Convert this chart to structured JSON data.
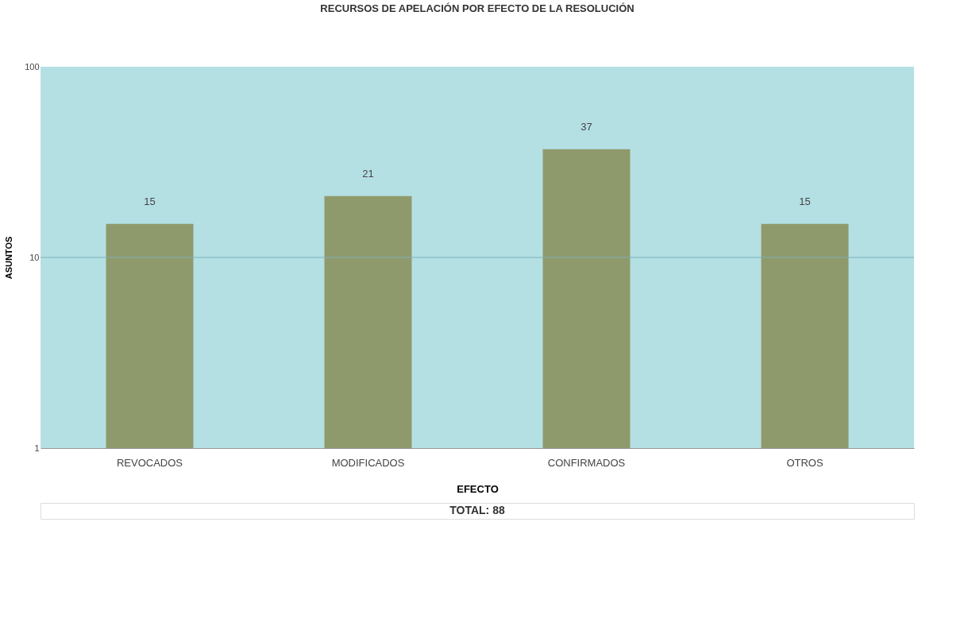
{
  "chart_data": {
    "type": "bar",
    "title": "RECURSOS DE APELACIÓN POR EFECTO DE LA RESOLUCIÓN",
    "categories": [
      "REVOCADOS",
      "MODIFICADOS",
      "CONFIRMADOS",
      "OTROS"
    ],
    "values": [
      15,
      21,
      37,
      15
    ],
    "color": "#8f9a6c",
    "xlabel": "EFECTO",
    "ylabel": "ASUNTOS",
    "log": true,
    "ylim": [
      1,
      100
    ],
    "yticks": [
      1,
      10,
      100
    ],
    "ref_lines": [
      {
        "axis": "y",
        "value": 10,
        "color": "#7fb0b8"
      }
    ],
    "data_labels": true,
    "annotations": [
      "TOTAL:  88"
    ]
  }
}
